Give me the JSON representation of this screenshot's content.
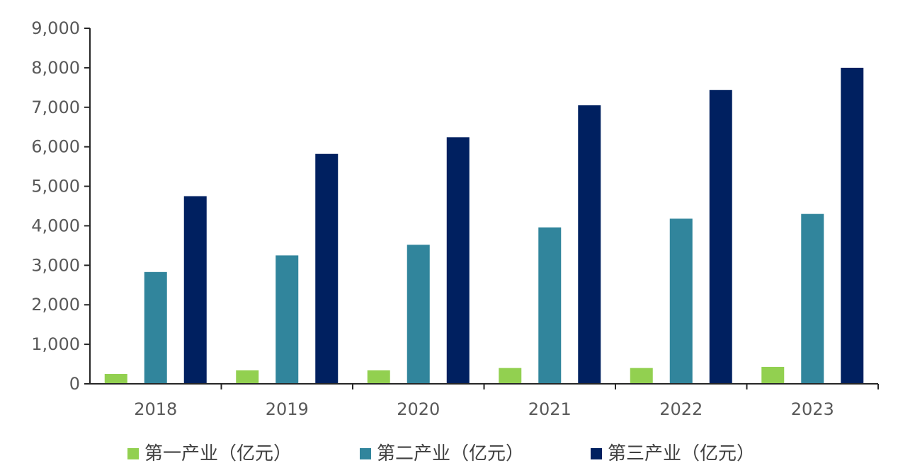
{
  "chart_data": {
    "type": "bar",
    "title": "",
    "xlabel": "",
    "ylabel": "",
    "categories": [
      "2018",
      "2019",
      "2020",
      "2021",
      "2022",
      "2023"
    ],
    "ylim": [
      0,
      9000
    ],
    "yticks": [
      0,
      1000,
      2000,
      3000,
      4000,
      5000,
      6000,
      7000,
      8000,
      9000
    ],
    "ytick_labels": [
      "0",
      "1,000",
      "2,000",
      "3,000",
      "4,000",
      "5,000",
      "6,000",
      "7,000",
      "8,000",
      "9,000"
    ],
    "grid": false,
    "legend_position": "bottom",
    "series": [
      {
        "name": "第一产业（亿元）",
        "color": "#92D050",
        "values": [
          250,
          340,
          340,
          400,
          400,
          430
        ]
      },
      {
        "name": "第二产业（亿元）",
        "color": "#31859C",
        "values": [
          2830,
          3250,
          3520,
          3960,
          4180,
          4300
        ]
      },
      {
        "name": "第三产业（亿元）",
        "color": "#002060",
        "values": [
          4750,
          5820,
          6240,
          7050,
          7440,
          8000
        ]
      }
    ]
  }
}
